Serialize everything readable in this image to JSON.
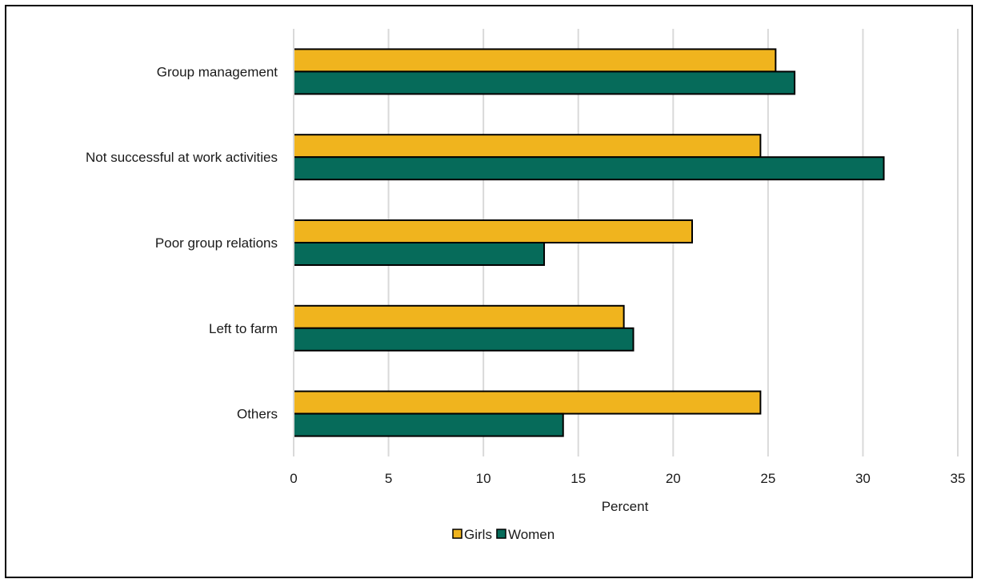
{
  "chart_data": {
    "type": "bar",
    "orientation": "horizontal",
    "categories": [
      "Group management",
      "Not successful at work activities",
      "Poor group relations",
      "Left to farm",
      "Others"
    ],
    "series": [
      {
        "name": "Girls",
        "color": "#f0b41e",
        "values": [
          25.4,
          24.6,
          21.0,
          17.4,
          24.6
        ]
      },
      {
        "name": "Women",
        "color": "#066b5a",
        "values": [
          26.4,
          31.1,
          13.2,
          17.9,
          14.2
        ]
      }
    ],
    "xlabel": "Percent",
    "ylabel": "",
    "xlim": [
      0,
      35
    ],
    "xticks": [
      0,
      5,
      10,
      15,
      20,
      25,
      30,
      35
    ],
    "grid": "vertical",
    "legend_position": "bottom"
  }
}
